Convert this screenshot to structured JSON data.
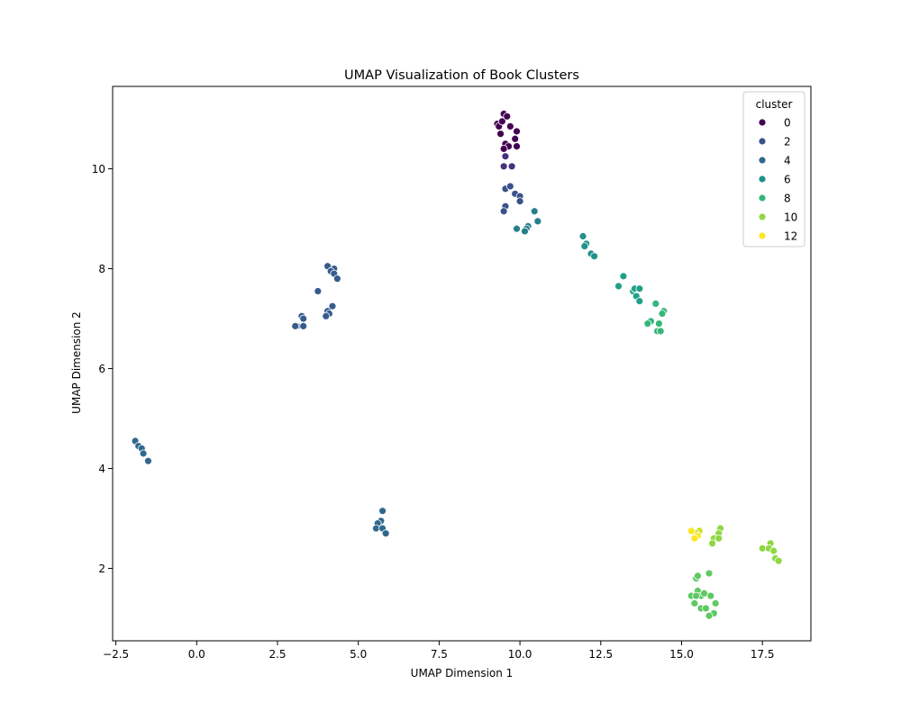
{
  "chart_data": {
    "type": "scatter",
    "title": "UMAP Visualization of Book Clusters",
    "xlabel": "UMAP Dimension 1",
    "ylabel": "UMAP Dimension 2",
    "xlim": [
      -2.6,
      19.0
    ],
    "ylim": [
      0.55,
      11.65
    ],
    "xticks": [
      -2.5,
      0.0,
      2.5,
      5.0,
      7.5,
      10.0,
      12.5,
      15.0,
      17.5
    ],
    "xtick_labels": [
      "−2.5",
      "0.0",
      "2.5",
      "5.0",
      "7.5",
      "10.0",
      "12.5",
      "15.0",
      "17.5"
    ],
    "yticks": [
      2,
      4,
      6,
      8,
      10
    ],
    "ytick_labels": [
      "2",
      "4",
      "6",
      "8",
      "10"
    ],
    "grid": false,
    "legend": {
      "title": "cluster",
      "placement": "top-right",
      "entries": [
        {
          "label": "0",
          "color": "#440154"
        },
        {
          "label": "2",
          "color": "#3b528b"
        },
        {
          "label": "4",
          "color": "#31688e"
        },
        {
          "label": "6",
          "color": "#21918c"
        },
        {
          "label": "8",
          "color": "#35b779"
        },
        {
          "label": "10",
          "color": "#90d743"
        },
        {
          "label": "12",
          "color": "#fde725"
        }
      ]
    },
    "series": [
      {
        "cluster": 0,
        "color": "#440154",
        "points": [
          [
            9.3,
            10.9
          ],
          [
            9.35,
            10.85
          ],
          [
            9.45,
            10.95
          ],
          [
            9.5,
            11.1
          ],
          [
            9.6,
            11.05
          ],
          [
            9.7,
            10.85
          ],
          [
            9.9,
            10.75
          ],
          [
            9.4,
            10.7
          ],
          [
            9.85,
            10.6
          ],
          [
            9.55,
            10.5
          ],
          [
            9.65,
            10.45
          ],
          [
            9.9,
            10.45
          ],
          [
            9.5,
            10.4
          ]
        ]
      },
      {
        "cluster": 1,
        "color": "#46327e",
        "points": [
          [
            9.55,
            10.25
          ],
          [
            9.5,
            10.05
          ],
          [
            9.75,
            10.05
          ]
        ]
      },
      {
        "cluster": 2,
        "color": "#3b528b",
        "points": [
          [
            9.55,
            9.6
          ],
          [
            9.7,
            9.65
          ],
          [
            9.85,
            9.5
          ],
          [
            10.0,
            9.45
          ],
          [
            10.0,
            9.35
          ],
          [
            9.55,
            9.25
          ],
          [
            9.5,
            9.15
          ]
        ]
      },
      {
        "cluster": 3,
        "color": "#365c8d",
        "points": [
          [
            4.05,
            8.05
          ],
          [
            4.25,
            8.0
          ],
          [
            4.15,
            7.95
          ],
          [
            4.25,
            7.9
          ],
          [
            4.35,
            7.8
          ],
          [
            3.75,
            7.55
          ],
          [
            4.2,
            7.25
          ],
          [
            4.05,
            7.15
          ],
          [
            4.1,
            7.1
          ],
          [
            4.0,
            7.05
          ],
          [
            3.25,
            7.05
          ],
          [
            3.3,
            7.0
          ],
          [
            3.1,
            6.85
          ],
          [
            3.05,
            6.85
          ],
          [
            3.3,
            6.85
          ]
        ]
      },
      {
        "cluster": 4,
        "color": "#31688e",
        "points": [
          [
            -1.9,
            4.55
          ],
          [
            -1.8,
            4.45
          ],
          [
            -1.7,
            4.4
          ],
          [
            -1.65,
            4.3
          ],
          [
            -1.5,
            4.15
          ],
          [
            5.75,
            3.15
          ],
          [
            5.7,
            2.95
          ],
          [
            5.6,
            2.9
          ],
          [
            5.55,
            2.8
          ],
          [
            5.75,
            2.8
          ],
          [
            5.85,
            2.7
          ]
        ]
      },
      {
        "cluster": 5,
        "color": "#277f8e",
        "points": [
          [
            10.45,
            9.15
          ],
          [
            10.55,
            8.95
          ],
          [
            9.9,
            8.8
          ],
          [
            10.25,
            8.85
          ],
          [
            10.2,
            8.8
          ],
          [
            10.15,
            8.75
          ]
        ]
      },
      {
        "cluster": 6,
        "color": "#21918c",
        "points": [
          [
            11.95,
            8.65
          ],
          [
            12.05,
            8.5
          ],
          [
            12.0,
            8.45
          ],
          [
            12.2,
            8.3
          ],
          [
            12.3,
            8.25
          ]
        ]
      },
      {
        "cluster": 7,
        "color": "#1fa187",
        "points": [
          [
            13.2,
            7.85
          ],
          [
            13.05,
            7.65
          ],
          [
            13.5,
            7.55
          ],
          [
            13.55,
            7.6
          ],
          [
            13.7,
            7.6
          ],
          [
            13.6,
            7.45
          ],
          [
            13.7,
            7.35
          ]
        ]
      },
      {
        "cluster": 8,
        "color": "#35b779",
        "points": [
          [
            14.2,
            7.3
          ],
          [
            14.45,
            7.15
          ],
          [
            14.4,
            7.1
          ],
          [
            14.05,
            6.95
          ],
          [
            13.95,
            6.9
          ],
          [
            14.3,
            6.9
          ],
          [
            14.25,
            6.75
          ],
          [
            14.35,
            6.75
          ]
        ]
      },
      {
        "cluster": 9,
        "color": "#5ec962",
        "points": [
          [
            15.45,
            1.8
          ],
          [
            15.5,
            1.85
          ],
          [
            15.85,
            1.9
          ],
          [
            15.3,
            1.45
          ],
          [
            15.5,
            1.55
          ],
          [
            15.6,
            1.45
          ],
          [
            15.45,
            1.45
          ],
          [
            15.7,
            1.5
          ],
          [
            15.9,
            1.45
          ],
          [
            15.4,
            1.3
          ],
          [
            16.05,
            1.3
          ],
          [
            15.6,
            1.2
          ],
          [
            15.75,
            1.2
          ],
          [
            16.0,
            1.1
          ],
          [
            15.85,
            1.05
          ]
        ]
      },
      {
        "cluster": 10,
        "color": "#90d743",
        "points": [
          [
            16.2,
            2.8
          ],
          [
            16.15,
            2.7
          ],
          [
            16.0,
            2.6
          ],
          [
            16.15,
            2.6
          ],
          [
            15.95,
            2.5
          ],
          [
            17.75,
            2.5
          ],
          [
            17.5,
            2.4
          ],
          [
            17.7,
            2.4
          ],
          [
            17.85,
            2.35
          ],
          [
            17.9,
            2.2
          ],
          [
            18.0,
            2.15
          ]
        ]
      },
      {
        "cluster": 11,
        "color": "#c8e020",
        "points": [
          [
            15.55,
            2.75
          ],
          [
            15.45,
            2.7
          ]
        ]
      },
      {
        "cluster": 12,
        "color": "#fde725",
        "points": [
          [
            15.3,
            2.75
          ],
          [
            15.5,
            2.65
          ],
          [
            15.4,
            2.6
          ]
        ]
      }
    ]
  }
}
